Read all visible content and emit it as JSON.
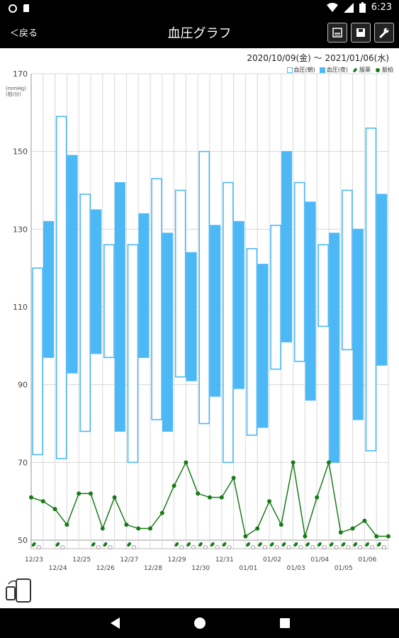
{
  "status_bar": {
    "time": "6:23"
  },
  "header": {
    "back_label": "＜戻る",
    "title": "血圧グラフ"
  },
  "toolbar": {
    "buttons": [
      {
        "name": "print-button",
        "icon": "print-icon"
      },
      {
        "name": "save-button",
        "icon": "save-icon"
      },
      {
        "name": "settings-button",
        "icon": "wrench-icon"
      }
    ]
  },
  "chart_header": {
    "date_range": "2020/10/09(金) 〜 2021/01/06(水)",
    "y_unit_line1": "(mmHg)",
    "y_unit_line2": "(拍/分)"
  },
  "legend": [
    {
      "label": "血圧(朝)",
      "symbol": "open-box"
    },
    {
      "label": "血圧(夜)",
      "symbol": "filled-box"
    },
    {
      "label": "服薬",
      "symbol": "pill"
    },
    {
      "label": "脈拍",
      "symbol": "dot"
    }
  ],
  "colors": {
    "bp": "#4cb8f5",
    "pulse": "#1a7a1a",
    "grid": "#d8d8d8"
  },
  "chart_data": {
    "type": "bar",
    "ylim": [
      50,
      170
    ],
    "yticks": [
      50,
      70,
      90,
      110,
      130,
      150,
      170
    ],
    "x_top_labels": [
      "12/23",
      "12/25",
      "12/27",
      "12/29",
      "12/31",
      "01/02",
      "01/04",
      "01/06"
    ],
    "x_bottom_labels": [
      "12/24",
      "12/26",
      "12/28",
      "12/30",
      "01/01",
      "01/03",
      "01/05"
    ],
    "bp_morning": [
      {
        "low": 72,
        "high": 120
      },
      {
        "low": 71,
        "high": 159
      },
      {
        "low": 78,
        "high": 139
      },
      {
        "low": 97,
        "high": 126
      },
      {
        "low": 70,
        "high": 126
      },
      {
        "low": 81,
        "high": 143
      },
      {
        "low": 92,
        "high": 140
      },
      {
        "low": 80,
        "high": 150
      },
      {
        "low": 70,
        "high": 142
      },
      {
        "low": 77,
        "high": 125
      },
      {
        "low": 94,
        "high": 131
      },
      {
        "low": 96,
        "high": 142
      },
      {
        "low": 105,
        "high": 126
      },
      {
        "low": 99,
        "high": 140
      },
      {
        "low": 73,
        "high": 156
      }
    ],
    "bp_evening": [
      {
        "low": 97,
        "high": 132
      },
      {
        "low": 93,
        "high": 149
      },
      {
        "low": 98,
        "high": 135
      },
      {
        "low": 78,
        "high": 142
      },
      {
        "low": 97,
        "high": 134
      },
      {
        "low": 78,
        "high": 129
      },
      {
        "low": 91,
        "high": 124
      },
      {
        "low": 87,
        "high": 131
      },
      {
        "low": 89,
        "high": 132
      },
      {
        "low": 79,
        "high": 121
      },
      {
        "low": 101,
        "high": 150
      },
      {
        "low": 86,
        "high": 137
      },
      {
        "low": 70,
        "high": 129
      },
      {
        "low": 81,
        "high": 130
      },
      {
        "low": 95,
        "high": 139
      }
    ],
    "pulse": [
      61,
      60,
      58,
      54,
      62,
      62,
      53,
      61,
      54,
      53,
      53,
      57,
      64,
      70,
      62,
      61,
      61,
      66,
      51,
      53,
      60,
      54,
      70,
      51,
      61,
      70,
      52,
      53,
      55,
      51,
      51
    ],
    "medication": [
      1,
      0,
      1,
      0,
      0,
      1,
      1,
      0,
      1,
      0,
      0,
      0,
      1,
      1,
      1,
      1,
      1,
      0,
      1,
      1,
      1,
      1,
      1,
      1,
      1,
      1,
      1,
      1,
      1,
      1,
      0
    ]
  }
}
